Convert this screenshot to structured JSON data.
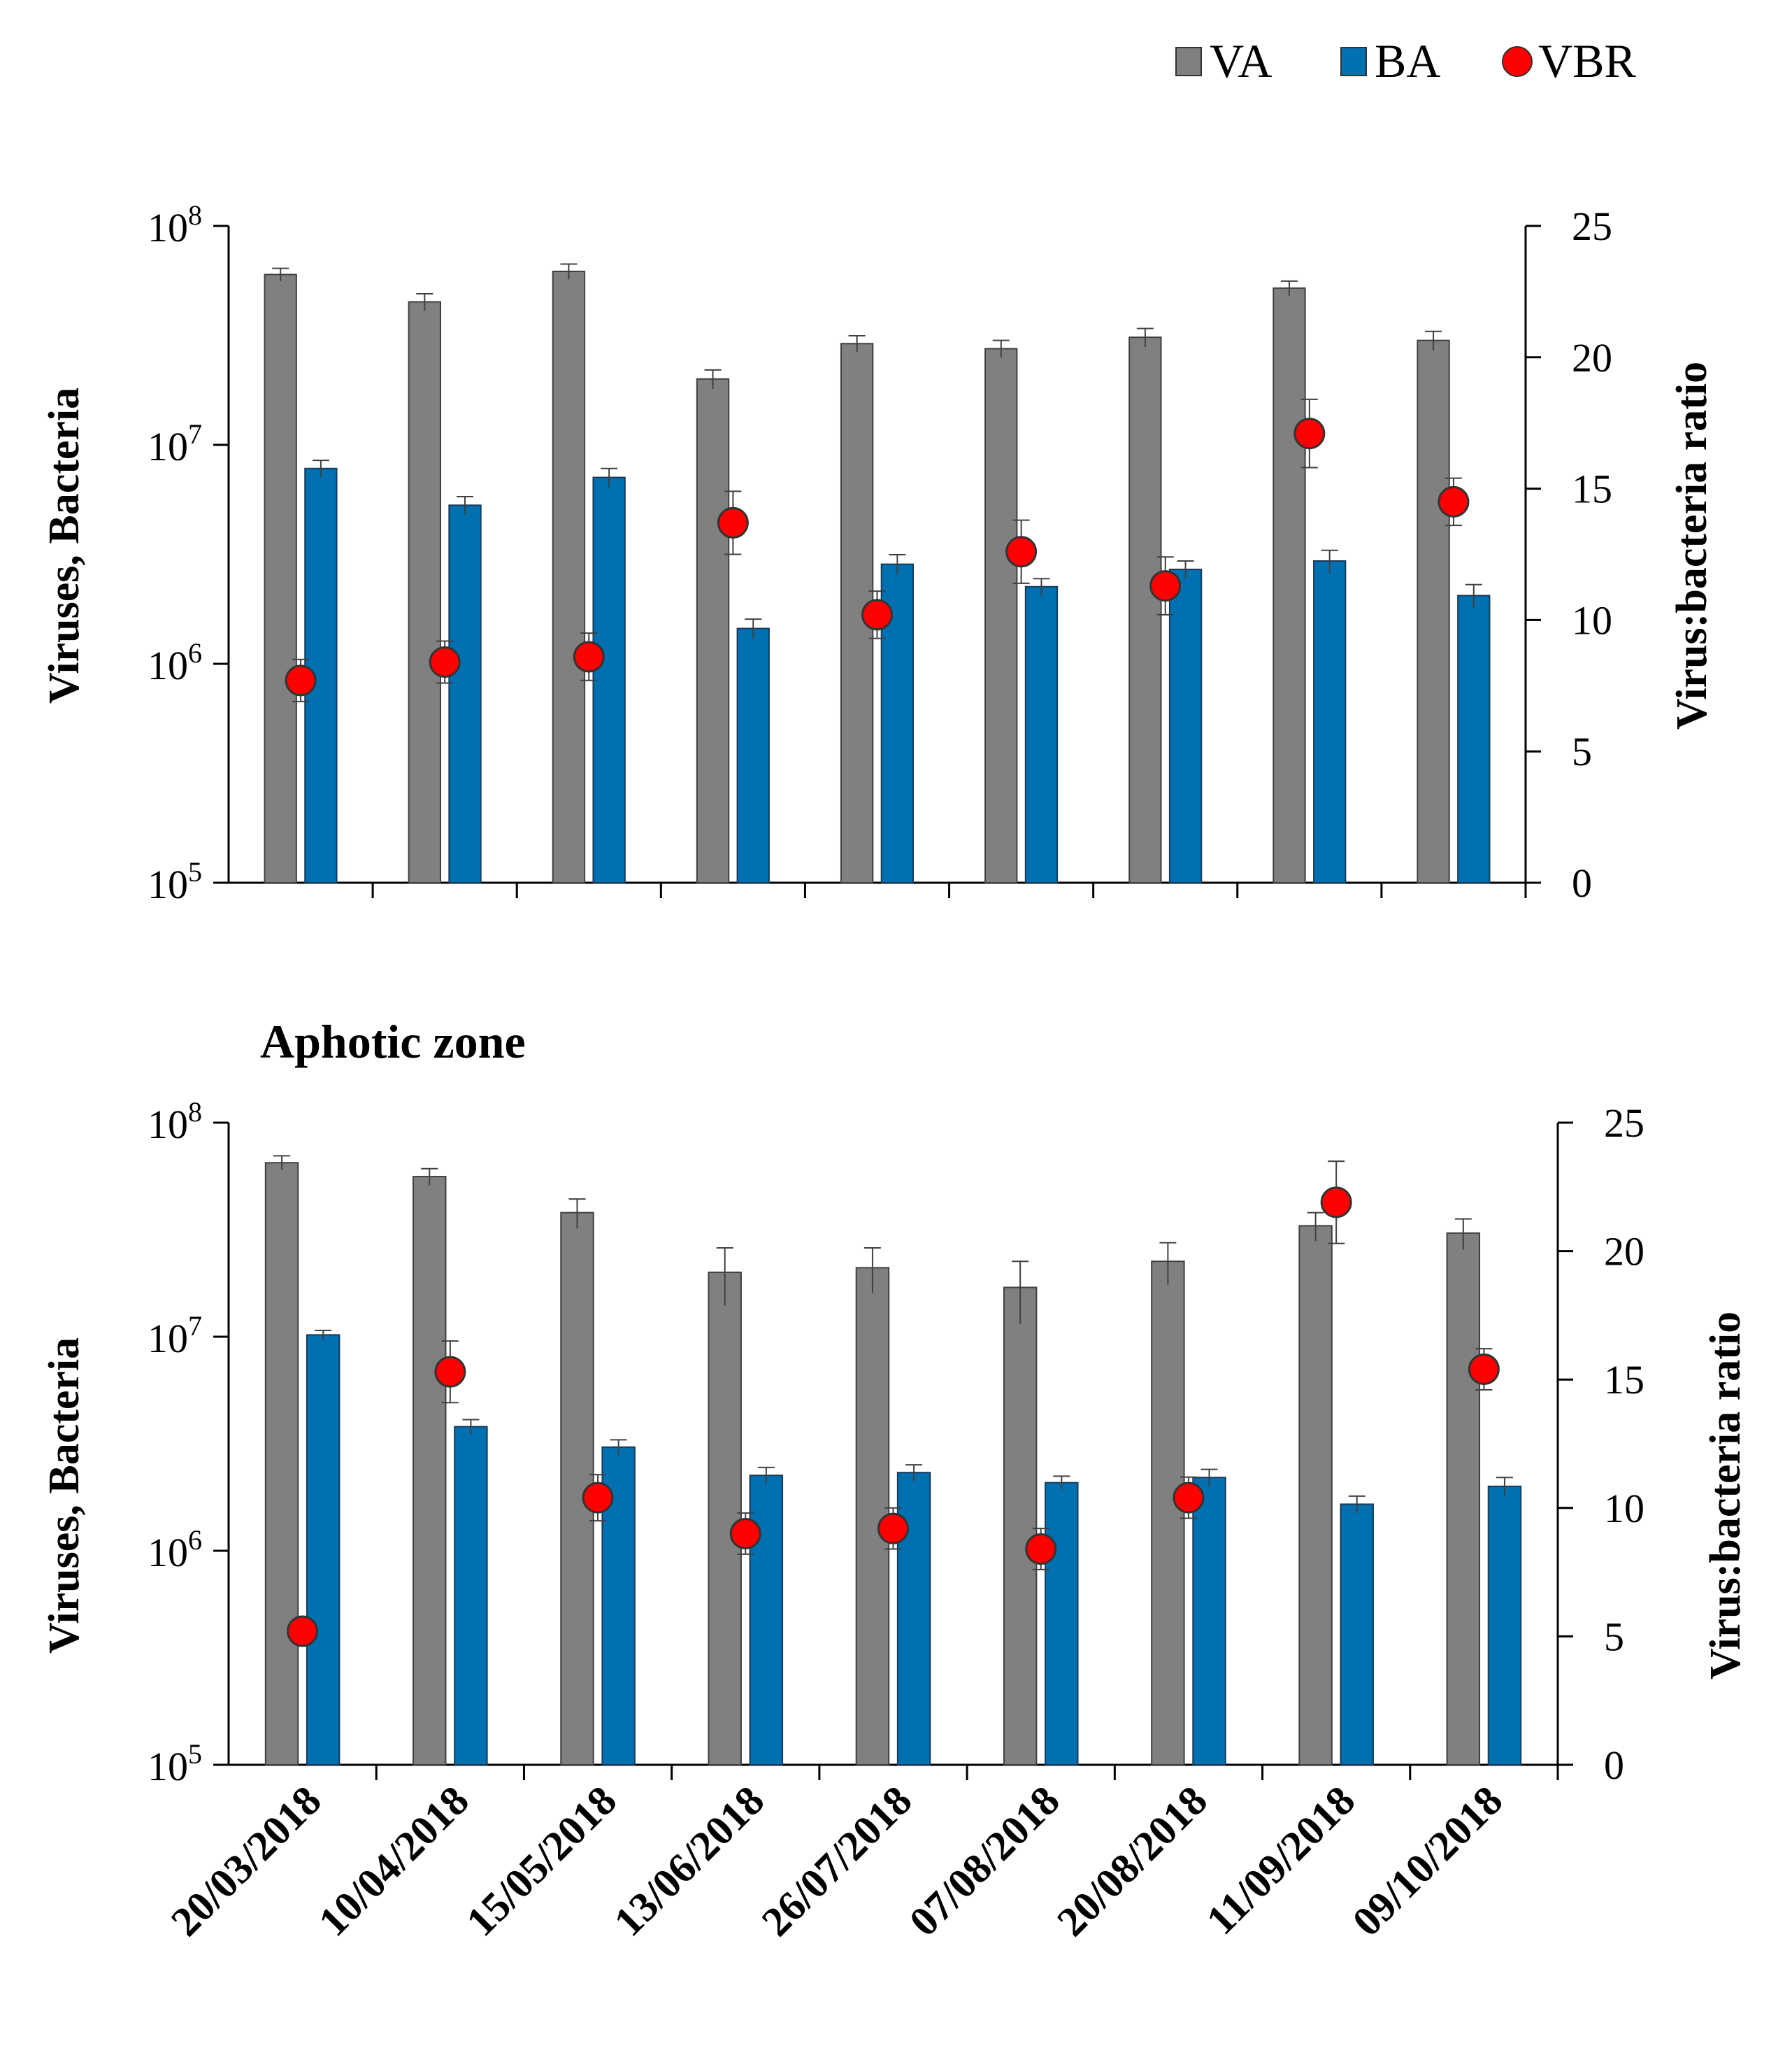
{
  "legend": {
    "items": [
      {
        "label": "VA",
        "color": "#808080",
        "shape": "square"
      },
      {
        "label": "BA",
        "color": "#0070b0",
        "shape": "square"
      },
      {
        "label": "VBR",
        "color": "#ff0000",
        "shape": "circle"
      }
    ]
  },
  "chart_data": [
    {
      "type": "bar",
      "title": "",
      "categories": [
        "20/03/2018",
        "10/04/2018",
        "15/05/2018",
        "13/06/2018",
        "26/07/2018",
        "07/08/2018",
        "20/08/2018",
        "11/09/2018",
        "09/10/2018"
      ],
      "ylabel": "Viruses, Bacteria",
      "y2label": "Virus:bacteria ratio",
      "yscale": "log",
      "ylim": [
        100000,
        100000000
      ],
      "y_ticks": [
        "10^5",
        "10^6",
        "10^7",
        "10^8"
      ],
      "y2lim": [
        0,
        25
      ],
      "y2_ticks": [
        "0",
        "5",
        "10",
        "15",
        "20",
        "25"
      ],
      "series": [
        {
          "name": "VA",
          "color": "#808080",
          "values": [
            60000000,
            45000000,
            62000000,
            20000000,
            29000000,
            27500000,
            31000000,
            52000000,
            30000000
          ],
          "errors": [
            4000000,
            4000000,
            5000000,
            2000000,
            2500000,
            2500000,
            3000000,
            4000000,
            3000000
          ]
        },
        {
          "name": "BA",
          "color": "#0070b0",
          "values": [
            7800000,
            5300000,
            7100000,
            1450000,
            2850000,
            2250000,
            2700000,
            2950000,
            2050000
          ],
          "errors": [
            700000,
            500000,
            700000,
            150000,
            300000,
            200000,
            250000,
            350000,
            250000
          ]
        },
        {
          "name": "VBR",
          "type": "scatter",
          "axis": "right",
          "color": "#ff0000",
          "values": [
            7.7,
            8.4,
            8.6,
            13.7,
            10.2,
            12.6,
            11.3,
            17.1,
            14.5
          ],
          "errors": [
            0.8,
            0.8,
            0.9,
            1.2,
            0.9,
            1.2,
            1.1,
            1.3,
            0.9
          ]
        }
      ]
    },
    {
      "type": "bar",
      "title": "Aphotic zone",
      "categories": [
        "20/03/2018",
        "10/04/2018",
        "15/05/2018",
        "13/06/2018",
        "26/07/2018",
        "07/08/2018",
        "20/08/2018",
        "11/09/2018",
        "09/10/2018"
      ],
      "ylabel": "Viruses, Bacteria",
      "y2label": "Virus:bacteria ratio",
      "yscale": "log",
      "ylim": [
        100000,
        100000000
      ],
      "y_ticks": [
        "10^5",
        "10^6",
        "10^7",
        "10^8"
      ],
      "y2lim": [
        0,
        25
      ],
      "y2_ticks": [
        "0",
        "5",
        "10",
        "15",
        "20",
        "25"
      ],
      "series": [
        {
          "name": "VA",
          "color": "#808080",
          "values": [
            65000000,
            56000000,
            38000000,
            20000000,
            21000000,
            17000000,
            22500000,
            33000000,
            30500000
          ],
          "errors": [
            5000000,
            5000000,
            6000000,
            6000000,
            5000000,
            5500000,
            5000000,
            5000000,
            5000000
          ]
        },
        {
          "name": "BA",
          "color": "#0070b0",
          "values": [
            10200000,
            3800000,
            3050000,
            2250000,
            2320000,
            2080000,
            2200000,
            1650000,
            2000000
          ],
          "errors": [
            500000,
            300000,
            250000,
            200000,
            200000,
            150000,
            200000,
            150000,
            200000
          ]
        },
        {
          "name": "VBR",
          "type": "scatter",
          "axis": "right",
          "color": "#ff0000",
          "values": [
            5.2,
            15.3,
            10.4,
            9.0,
            9.2,
            8.4,
            10.4,
            21.9,
            15.4
          ],
          "errors": [
            0.5,
            1.2,
            0.9,
            0.8,
            0.8,
            0.8,
            0.8,
            1.6,
            0.8
          ]
        }
      ]
    }
  ]
}
